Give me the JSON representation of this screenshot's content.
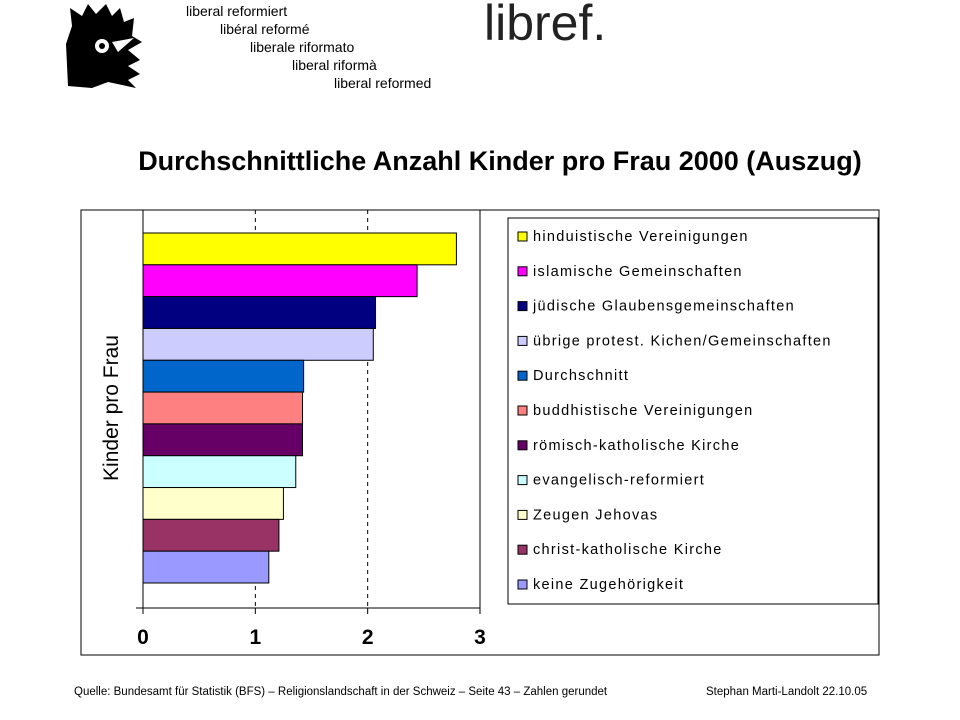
{
  "header": {
    "taglines": [
      "liberal reformiert",
      "libéral reformé",
      "liberale riformato",
      "liberal riformà",
      "liberal reformed"
    ],
    "brand": "libref."
  },
  "footer": {
    "source": "Quelle: Bundesamt für Statistik (BFS) – Religionslandschaft in der Schweiz – Seite 43 – Zahlen gerundet",
    "credit": "Stephan Marti-Landolt 22.10.05"
  },
  "chart_data": {
    "type": "bar",
    "orientation": "horizontal",
    "title": "Durchschnittliche Anzahl Kinder pro Frau 2000 (Auszug)",
    "ylabel": "Kinder pro Frau",
    "xlabel": "",
    "xlim": [
      0,
      3
    ],
    "xticks": [
      "0",
      "1",
      "2",
      "3"
    ],
    "grid": "vertical dashed",
    "legend": "right",
    "categories": [
      "hinduistische Vereinigungen",
      "islamische Gemeinschaften",
      "jüdische Glaubensgemeinschaften",
      "übrige protest. Kichen/Gemeinschaften",
      "Durchschnitt",
      "buddhistische Vereinigungen",
      "römisch-katholische Kirche",
      "evangelisch-reformiert",
      "Zeugen Jehovas",
      "christ-katholische Kirche",
      "keine Zugehörigkeit"
    ],
    "values": [
      2.79,
      2.44,
      2.07,
      2.05,
      1.43,
      1.42,
      1.42,
      1.36,
      1.25,
      1.21,
      1.12
    ],
    "colors": [
      "#ffff00",
      "#ff00ff",
      "#000080",
      "#ccccff",
      "#0066cc",
      "#ff8080",
      "#660066",
      "#ccffff",
      "#ffffcc",
      "#993366",
      "#9999ff"
    ]
  }
}
